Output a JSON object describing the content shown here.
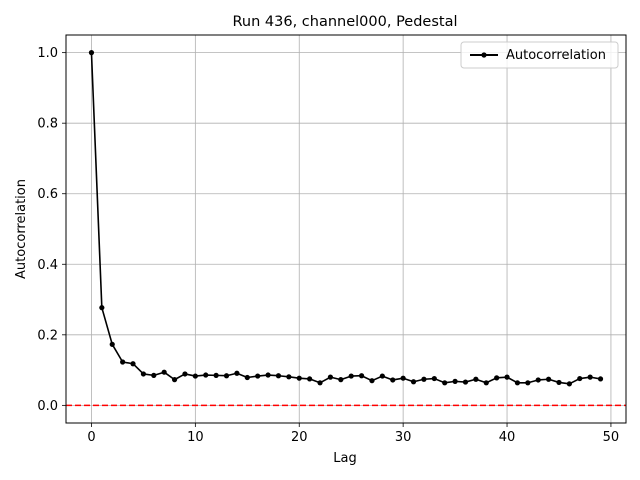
{
  "chart_data": {
    "type": "line",
    "title": "Run 436, channel000, Pedestal",
    "xlabel": "Lag",
    "ylabel": "Autocorrelation",
    "xlim": [
      -2.45,
      51.45
    ],
    "ylim": [
      -0.05,
      1.05
    ],
    "xticks": [
      0,
      10,
      20,
      30,
      40,
      50
    ],
    "yticks": [
      0.0,
      0.2,
      0.4,
      0.6,
      0.8,
      1.0
    ],
    "xtick_labels": [
      "0",
      "10",
      "20",
      "30",
      "40",
      "50"
    ],
    "ytick_labels": [
      "0.0",
      "0.2",
      "0.4",
      "0.6",
      "0.8",
      "1.0"
    ],
    "grid": true,
    "legend": {
      "position": "top-right"
    },
    "series": [
      {
        "name": "Autocorrelation",
        "color": "#000000",
        "marker": "circle",
        "x": [
          0,
          1,
          2,
          3,
          4,
          5,
          6,
          7,
          8,
          9,
          10,
          11,
          12,
          13,
          14,
          15,
          16,
          17,
          18,
          19,
          20,
          21,
          22,
          23,
          24,
          25,
          26,
          27,
          28,
          29,
          30,
          31,
          32,
          33,
          34,
          35,
          36,
          37,
          38,
          39,
          40,
          41,
          42,
          43,
          44,
          45,
          46,
          47,
          48,
          49
        ],
        "y": [
          1.0,
          0.277,
          0.173,
          0.123,
          0.118,
          0.089,
          0.085,
          0.094,
          0.073,
          0.089,
          0.083,
          0.086,
          0.085,
          0.084,
          0.091,
          0.079,
          0.083,
          0.086,
          0.084,
          0.081,
          0.077,
          0.075,
          0.064,
          0.08,
          0.073,
          0.083,
          0.084,
          0.07,
          0.083,
          0.072,
          0.077,
          0.067,
          0.074,
          0.076,
          0.064,
          0.068,
          0.066,
          0.074,
          0.064,
          0.078,
          0.08,
          0.064,
          0.064,
          0.072,
          0.074,
          0.065,
          0.061,
          0.076,
          0.08,
          0.075
        ]
      }
    ],
    "reference_line": {
      "y": 0.0,
      "color": "#ff0000",
      "style": "dashed"
    }
  }
}
